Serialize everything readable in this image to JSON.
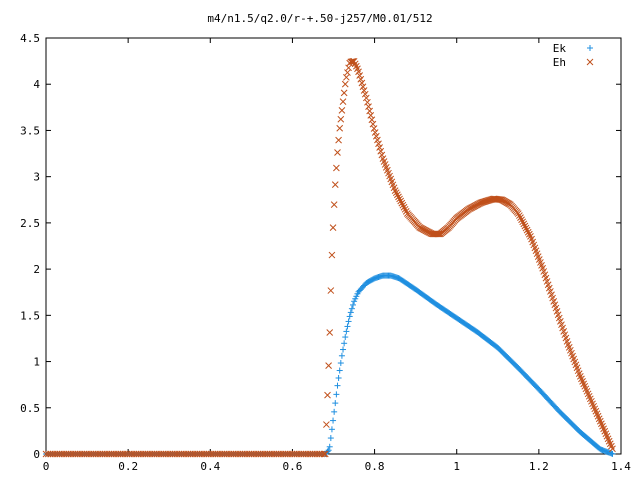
{
  "chart_data": {
    "type": "scatter",
    "title": "m4/n1.5/q2.0/r-+.50-j257/M0.01/512",
    "xlabel": "",
    "ylabel": "",
    "xlim": [
      0,
      1.4
    ],
    "ylim": [
      0,
      4.5
    ],
    "xticks": [
      "0",
      "0.2",
      "0.4",
      "0.6",
      "0.8",
      "1",
      "1.2",
      "1.4"
    ],
    "yticks": [
      "0",
      "0.5",
      "1",
      "1.5",
      "2",
      "2.5",
      "3",
      "3.5",
      "4",
      "4.5"
    ],
    "grid": false,
    "legend_position": "top-right",
    "series": [
      {
        "name": "Ek",
        "marker": "plus",
        "color": "#1f8fe0",
        "x": [
          0,
          0.68,
          0.69,
          0.7,
          0.71,
          0.72,
          0.73,
          0.74,
          0.75,
          0.76,
          0.78,
          0.8,
          0.82,
          0.84,
          0.86,
          0.9,
          0.95,
          1.0,
          1.05,
          1.1,
          1.15,
          1.2,
          1.25,
          1.3,
          1.35,
          1.38
        ],
        "y": [
          0,
          0,
          0.05,
          0.4,
          0.75,
          1.05,
          1.3,
          1.5,
          1.65,
          1.75,
          1.85,
          1.9,
          1.93,
          1.93,
          1.9,
          1.78,
          1.62,
          1.47,
          1.32,
          1.15,
          0.93,
          0.7,
          0.46,
          0.24,
          0.05,
          0.0
        ]
      },
      {
        "name": "Eh",
        "marker": "cross",
        "color": "#c0501b",
        "x": [
          0,
          0.68,
          0.69,
          0.695,
          0.7,
          0.705,
          0.71,
          0.715,
          0.72,
          0.73,
          0.74,
          0.75,
          0.76,
          0.78,
          0.8,
          0.82,
          0.85,
          0.88,
          0.91,
          0.94,
          0.96,
          0.98,
          1.0,
          1.03,
          1.06,
          1.09,
          1.11,
          1.13,
          1.15,
          1.18,
          1.21,
          1.24,
          1.27,
          1.3,
          1.33,
          1.36,
          1.38
        ],
        "y": [
          0,
          0,
          1.18,
          2.02,
          2.57,
          2.97,
          3.28,
          3.52,
          3.7,
          4.05,
          4.24,
          4.25,
          4.15,
          3.85,
          3.5,
          3.2,
          2.85,
          2.6,
          2.45,
          2.38,
          2.38,
          2.45,
          2.55,
          2.65,
          2.72,
          2.76,
          2.75,
          2.7,
          2.6,
          2.35,
          2.0,
          1.6,
          1.2,
          0.85,
          0.55,
          0.25,
          0.05
        ]
      }
    ]
  }
}
